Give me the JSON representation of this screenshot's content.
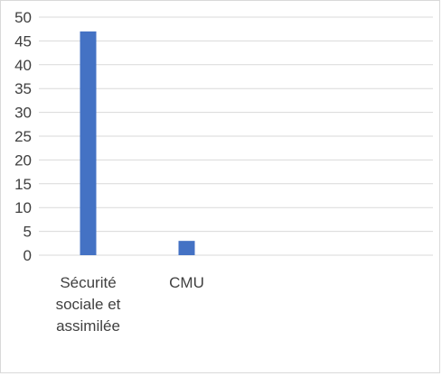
{
  "chart_data": {
    "type": "bar",
    "title": "",
    "xlabel": "",
    "ylabel": "",
    "categories": [
      [
        "Sécurité",
        "sociale et",
        "assimilée"
      ],
      [
        "CMU"
      ],
      [
        ""
      ],
      [
        ""
      ]
    ],
    "values": [
      47,
      3,
      null,
      null
    ],
    "ylim": [
      0,
      50
    ],
    "yticks": [
      0,
      5,
      10,
      15,
      20,
      25,
      30,
      35,
      40,
      45,
      50
    ],
    "grid": true,
    "legend": "none",
    "colors": {
      "bar": "#4472c4",
      "grid": "#d9d9d9",
      "text": "#404040",
      "border": "#d9d9d9"
    }
  }
}
